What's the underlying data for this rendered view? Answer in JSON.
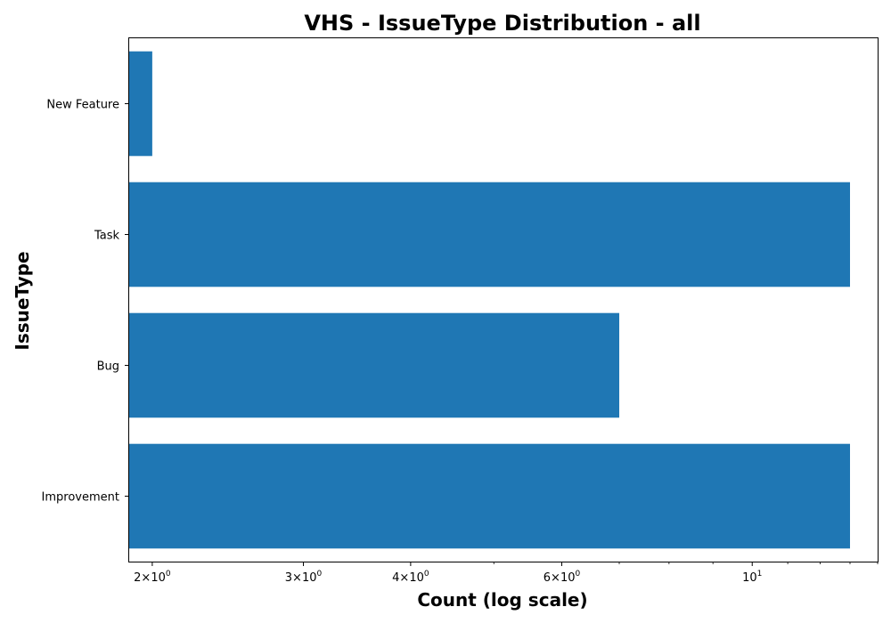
{
  "chart_data": {
    "type": "bar",
    "orientation": "horizontal",
    "title": "VHS - IssueType Distribution - all",
    "xlabel": "Count (log scale)",
    "ylabel": "IssueType",
    "x_scale": "log",
    "xlim": [
      1.88,
      14.0
    ],
    "categories": [
      "New Feature",
      "Task",
      "Bug",
      "Improvement"
    ],
    "values": [
      2,
      13,
      7,
      13
    ],
    "x_ticks": [
      {
        "value": 2,
        "mantissa": "2",
        "base": "10",
        "exp": "0"
      },
      {
        "value": 3,
        "mantissa": "3",
        "base": "10",
        "exp": "0"
      },
      {
        "value": 4,
        "mantissa": "4",
        "base": "10",
        "exp": "0"
      },
      {
        "value": 6,
        "mantissa": "6",
        "base": "10",
        "exp": "0"
      },
      {
        "value": 10,
        "mantissa": "",
        "base": "10",
        "exp": "1"
      }
    ],
    "bar_color": "#1f77b4",
    "grid": false,
    "legend": "none"
  }
}
